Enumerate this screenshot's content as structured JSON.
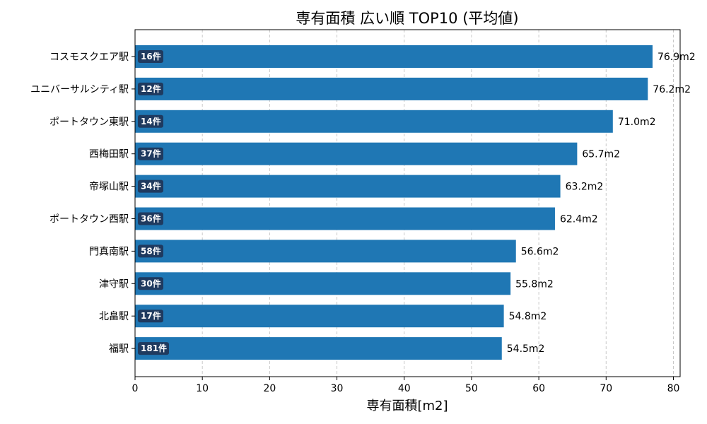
{
  "chart_data": {
    "type": "bar",
    "orientation": "horizontal",
    "title": "専有面積 広い順 TOP10 (平均値)",
    "xlabel": "専有面積[m2]",
    "ylabel": "",
    "xlim": [
      0,
      81
    ],
    "xticks": [
      0,
      10,
      20,
      30,
      40,
      50,
      60,
      70,
      80
    ],
    "grid": "x-dashed",
    "bar_color": "#1f77b4",
    "badge_color": "#1f3a5f",
    "categories": [
      "コスモスクエア駅",
      "ユニバーサルシティ駅",
      "ポートタウン東駅",
      "西梅田駅",
      "帝塚山駅",
      "ポートタウン西駅",
      "門真南駅",
      "津守駅",
      "北畠駅",
      "福駅"
    ],
    "values": [
      76.9,
      76.2,
      71.0,
      65.7,
      63.2,
      62.4,
      56.6,
      55.8,
      54.8,
      54.5
    ],
    "value_labels": [
      "76.9m2",
      "76.2m2",
      "71.0m2",
      "65.7m2",
      "63.2m2",
      "62.4m2",
      "56.6m2",
      "55.8m2",
      "54.8m2",
      "54.5m2"
    ],
    "count_labels": [
      "16件",
      "12件",
      "14件",
      "37件",
      "34件",
      "36件",
      "58件",
      "30件",
      "17件",
      "181件"
    ]
  }
}
